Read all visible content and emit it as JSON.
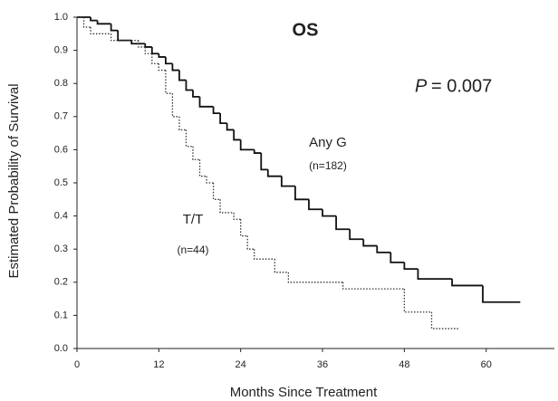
{
  "chart_data": {
    "type": "step",
    "title": "OS",
    "p_value": {
      "symbol": "P",
      "text": "= 0.007"
    },
    "x_label": "Months  Since  Treatment",
    "y_label": "Estimated  Probability  of  Survival",
    "xlim": [
      0,
      70
    ],
    "ylim": [
      0,
      1.0
    ],
    "xticks": [
      0,
      12,
      24,
      36,
      48,
      60
    ],
    "yticks": [
      {
        "value": 0,
        "label": "0.0"
      },
      0.1,
      0.2,
      0.3,
      0.4,
      0.5,
      0.6,
      0.7,
      0.8,
      0.9,
      {
        "value": 1,
        "label": "1.0"
      }
    ],
    "grid": false,
    "series": [
      {
        "name": "Any G",
        "n_label": "(n=182)",
        "color": "#111111",
        "dash": "solid",
        "x": [
          0,
          2,
          3,
          5,
          6,
          8,
          10,
          11,
          12,
          13,
          14,
          15,
          16,
          17,
          18,
          20,
          21,
          22,
          23,
          24,
          26,
          27,
          28,
          30,
          32,
          34,
          36,
          38,
          40,
          42,
          44,
          46,
          48,
          50,
          55,
          59.5,
          65
        ],
        "values": [
          1.0,
          0.99,
          0.98,
          0.96,
          0.93,
          0.92,
          0.91,
          0.89,
          0.88,
          0.86,
          0.84,
          0.81,
          0.78,
          0.76,
          0.73,
          0.71,
          0.68,
          0.66,
          0.63,
          0.6,
          0.59,
          0.54,
          0.52,
          0.49,
          0.45,
          0.42,
          0.4,
          0.36,
          0.33,
          0.31,
          0.29,
          0.26,
          0.24,
          0.21,
          0.19,
          0.14,
          0.14
        ]
      },
      {
        "name": "T/T",
        "n_label": "(n=44)",
        "color": "#333333",
        "dash": "dotted",
        "x": [
          0,
          1,
          2,
          5,
          9,
          10,
          11,
          12,
          13,
          14,
          15,
          16,
          17,
          18,
          19,
          20,
          21,
          23,
          24,
          25,
          26,
          29,
          31,
          39,
          48,
          52,
          56
        ],
        "values": [
          1.0,
          0.97,
          0.95,
          0.93,
          0.91,
          0.89,
          0.86,
          0.84,
          0.77,
          0.7,
          0.66,
          0.61,
          0.57,
          0.52,
          0.5,
          0.45,
          0.41,
          0.39,
          0.34,
          0.3,
          0.27,
          0.23,
          0.2,
          0.18,
          0.11,
          0.06,
          0.06
        ]
      }
    ]
  }
}
